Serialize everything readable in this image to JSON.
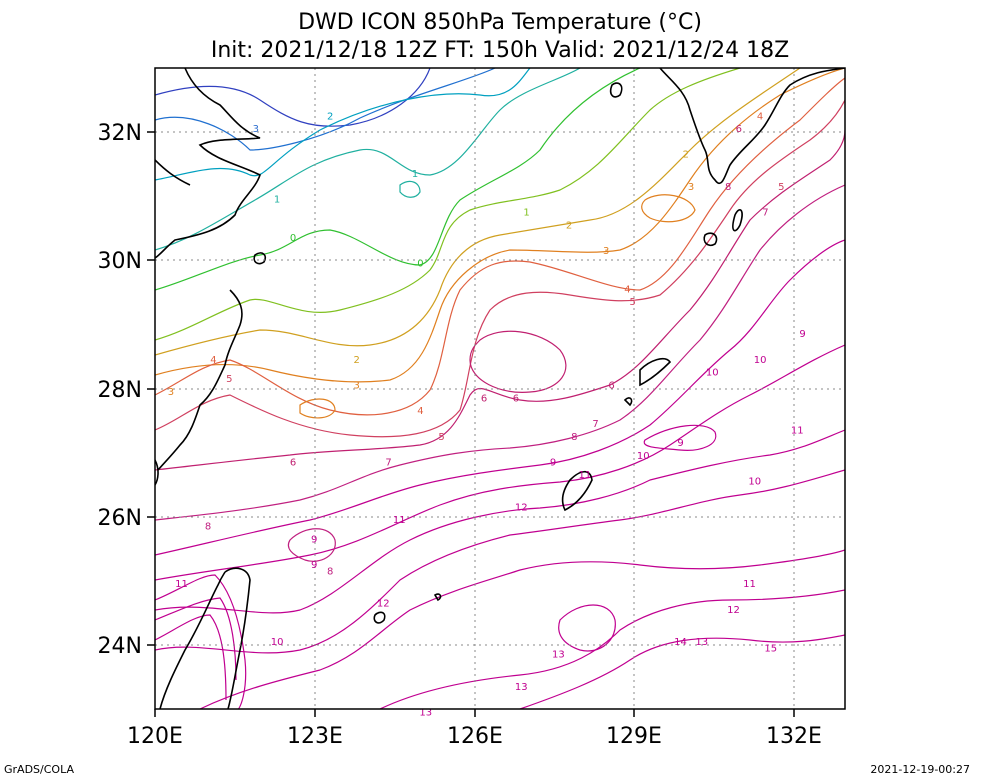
{
  "header": {
    "title": "DWD ICON 850hPa Temperature (°C)",
    "subtitle": "Init: 2021/12/18 12Z  FT: 150h  Valid: 2021/12/24 18Z"
  },
  "footer": {
    "left": "GrADS/COLA",
    "right": "2021-12-19-00:27"
  },
  "axes": {
    "x_ticks": [
      "120E",
      "123E",
      "126E",
      "129E",
      "132E"
    ],
    "y_ticks": [
      "32N",
      "30N",
      "28N",
      "26N",
      "24N"
    ]
  },
  "colors": {
    "cold": "#1f3fbf",
    "cool": "#00b0c0",
    "mild": "#30c030",
    "warm": "#e08020",
    "hot": "#c00080",
    "coast": "#000000",
    "grid": "#888888"
  },
  "contour_labels": [
    {
      "text": "3",
      "lon": 121.9,
      "lat": 32.0,
      "color": "#3070d0"
    },
    {
      "text": "2",
      "lon": 123.3,
      "lat": 32.2,
      "color": "#00a0c0"
    },
    {
      "text": "1",
      "lon": 122.3,
      "lat": 30.9,
      "color": "#20b0a0"
    },
    {
      "text": "1",
      "lon": 124.9,
      "lat": 31.3,
      "color": "#20b0a0"
    },
    {
      "text": "0",
      "lon": 122.6,
      "lat": 30.3,
      "color": "#30c030"
    },
    {
      "text": "0",
      "lon": 125.0,
      "lat": 29.9,
      "color": "#30c030"
    },
    {
      "text": "1",
      "lon": 127.0,
      "lat": 30.7,
      "color": "#80c020"
    },
    {
      "text": "2",
      "lon": 127.8,
      "lat": 30.5,
      "color": "#d0a020"
    },
    {
      "text": "2",
      "lon": 130.0,
      "lat": 31.6,
      "color": "#d0a020"
    },
    {
      "text": "3",
      "lon": 130.1,
      "lat": 31.1,
      "color": "#e08020"
    },
    {
      "text": "3",
      "lon": 128.5,
      "lat": 30.1,
      "color": "#e08020"
    },
    {
      "text": "2",
      "lon": 123.8,
      "lat": 28.4,
      "color": "#d0a020"
    },
    {
      "text": "3",
      "lon": 123.8,
      "lat": 28.0,
      "color": "#e08020"
    },
    {
      "text": "4",
      "lon": 121.1,
      "lat": 28.4,
      "color": "#e06040"
    },
    {
      "text": "3",
      "lon": 120.3,
      "lat": 27.9,
      "color": "#e08020"
    },
    {
      "text": "5",
      "lon": 121.4,
      "lat": 28.1,
      "color": "#d04060"
    },
    {
      "text": "4",
      "lon": 128.9,
      "lat": 29.5,
      "color": "#e06040"
    },
    {
      "text": "5",
      "lon": 129.0,
      "lat": 29.3,
      "color": "#d04060"
    },
    {
      "text": "4",
      "lon": 125.0,
      "lat": 27.6,
      "color": "#e06040"
    },
    {
      "text": "5",
      "lon": 125.4,
      "lat": 27.2,
      "color": "#d04060"
    },
    {
      "text": "6",
      "lon": 122.6,
      "lat": 26.8,
      "color": "#c02070"
    },
    {
      "text": "6",
      "lon": 126.2,
      "lat": 27.8,
      "color": "#c02070"
    },
    {
      "text": "6",
      "lon": 126.8,
      "lat": 27.8,
      "color": "#c02070"
    },
    {
      "text": "6",
      "lon": 128.6,
      "lat": 28.0,
      "color": "#c02070"
    },
    {
      "text": "7",
      "lon": 124.4,
      "lat": 26.8,
      "color": "#c02080"
    },
    {
      "text": "7",
      "lon": 128.3,
      "lat": 27.4,
      "color": "#c02080"
    },
    {
      "text": "7",
      "lon": 131.5,
      "lat": 30.7,
      "color": "#c02080"
    },
    {
      "text": "8",
      "lon": 121.0,
      "lat": 25.8,
      "color": "#c02080"
    },
    {
      "text": "8",
      "lon": 127.9,
      "lat": 27.2,
      "color": "#c02080"
    },
    {
      "text": "8",
      "lon": 123.3,
      "lat": 25.1,
      "color": "#c02080"
    },
    {
      "text": "8",
      "lon": 130.8,
      "lat": 31.1,
      "color": "#c02080"
    },
    {
      "text": "9",
      "lon": 123.0,
      "lat": 25.6,
      "color": "#c00090"
    },
    {
      "text": "9",
      "lon": 123.0,
      "lat": 25.2,
      "color": "#c00090"
    },
    {
      "text": "9",
      "lon": 127.5,
      "lat": 26.8,
      "color": "#c00090"
    },
    {
      "text": "9",
      "lon": 129.9,
      "lat": 27.1,
      "color": "#c00090"
    },
    {
      "text": "9",
      "lon": 132.2,
      "lat": 28.8,
      "color": "#c00090"
    },
    {
      "text": "10",
      "lon": 129.2,
      "lat": 26.9,
      "color": "#c00090"
    },
    {
      "text": "10",
      "lon": 130.5,
      "lat": 28.2,
      "color": "#c00090"
    },
    {
      "text": "10",
      "lon": 131.4,
      "lat": 28.4,
      "color": "#c00090"
    },
    {
      "text": "10",
      "lon": 131.3,
      "lat": 26.5,
      "color": "#c00090"
    },
    {
      "text": "10",
      "lon": 122.3,
      "lat": 24.0,
      "color": "#c00090"
    },
    {
      "text": "11",
      "lon": 120.5,
      "lat": 24.9,
      "color": "#c00090"
    },
    {
      "text": "11",
      "lon": 124.6,
      "lat": 25.9,
      "color": "#c00090"
    },
    {
      "text": "11",
      "lon": 132.1,
      "lat": 27.3,
      "color": "#c00090"
    },
    {
      "text": "11",
      "lon": 131.2,
      "lat": 24.9,
      "color": "#c00090"
    },
    {
      "text": "11",
      "lon": 128.1,
      "lat": 26.6,
      "color": "#c00090"
    },
    {
      "text": "12",
      "lon": 124.3,
      "lat": 24.6,
      "color": "#c00090"
    },
    {
      "text": "12",
      "lon": 126.9,
      "lat": 26.1,
      "color": "#c00090"
    },
    {
      "text": "12",
      "lon": 130.9,
      "lat": 24.5,
      "color": "#c00090"
    },
    {
      "text": "13",
      "lon": 127.6,
      "lat": 23.8,
      "color": "#c00090"
    },
    {
      "text": "13",
      "lon": 126.9,
      "lat": 23.3,
      "color": "#c00090"
    },
    {
      "text": "13",
      "lon": 125.1,
      "lat": 22.9,
      "color": "#c00090"
    },
    {
      "text": "13",
      "lon": 130.3,
      "lat": 24.0,
      "color": "#c00090"
    },
    {
      "text": "14",
      "lon": 129.9,
      "lat": 24.0,
      "color": "#c00090"
    },
    {
      "text": "15",
      "lon": 131.6,
      "lat": 23.9,
      "color": "#c00090"
    },
    {
      "text": "4",
      "lon": 131.4,
      "lat": 32.2,
      "color": "#e06040"
    },
    {
      "text": "5",
      "lon": 131.8,
      "lat": 31.1,
      "color": "#d04060"
    },
    {
      "text": "6",
      "lon": 131.0,
      "lat": 32.0,
      "color": "#c02070"
    }
  ]
}
